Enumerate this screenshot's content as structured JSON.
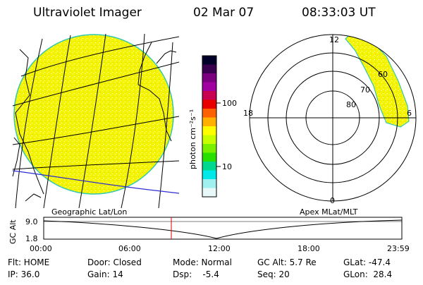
{
  "header": {
    "title": "Ultraviolet Imager",
    "date": "02 Mar 07",
    "time": "08:33:03 UT"
  },
  "colorbar": {
    "unit_label": "photon cm⁻²s⁻¹",
    "tick_100": "100",
    "tick_10": "10",
    "colors": [
      "#000028",
      "#3a0050",
      "#7a0080",
      "#a000a0",
      "#c80050",
      "#e80000",
      "#ff6000",
      "#ffb000",
      "#ffff00",
      "#c8ff00",
      "#78f000",
      "#28e000",
      "#00d890",
      "#00e8e8",
      "#a0f0f0",
      "#e6f8f8"
    ]
  },
  "map_panel": {
    "label": "Geographic Lat/Lon",
    "fill_color": "#f4f400",
    "edge_color": "#31c8b0",
    "coast_color": "#2d2dd0"
  },
  "polar_panel": {
    "label": "Apex MLat/MLT",
    "mlt_12": "12",
    "mlt_18": "18",
    "mlt_6": "6",
    "mlt_0": "0",
    "lat_60": "60",
    "lat_70": "70",
    "lat_80": "80"
  },
  "altitude_plot": {
    "axis_label": "GC Alt",
    "tick_high": "9.0",
    "tick_low": "1.8",
    "marker_color": "#e00000",
    "marker_time_hours": 8.55,
    "time_ticks": [
      "00:00",
      "06:00",
      "12:00",
      "18:00",
      "23:59"
    ]
  },
  "status": {
    "col1": [
      "Flt: HOME",
      "IP: 36.0"
    ],
    "col2": [
      "Door: Closed",
      "Gain: 14"
    ],
    "col3": [
      "Mode: Normal",
      "Dsp:    -5.4"
    ],
    "col4": [
      "GC Alt: 5.7 Re",
      "Seq: 20"
    ],
    "col5": [
      "GLat: -47.4",
      "GLon:  28.4"
    ]
  }
}
